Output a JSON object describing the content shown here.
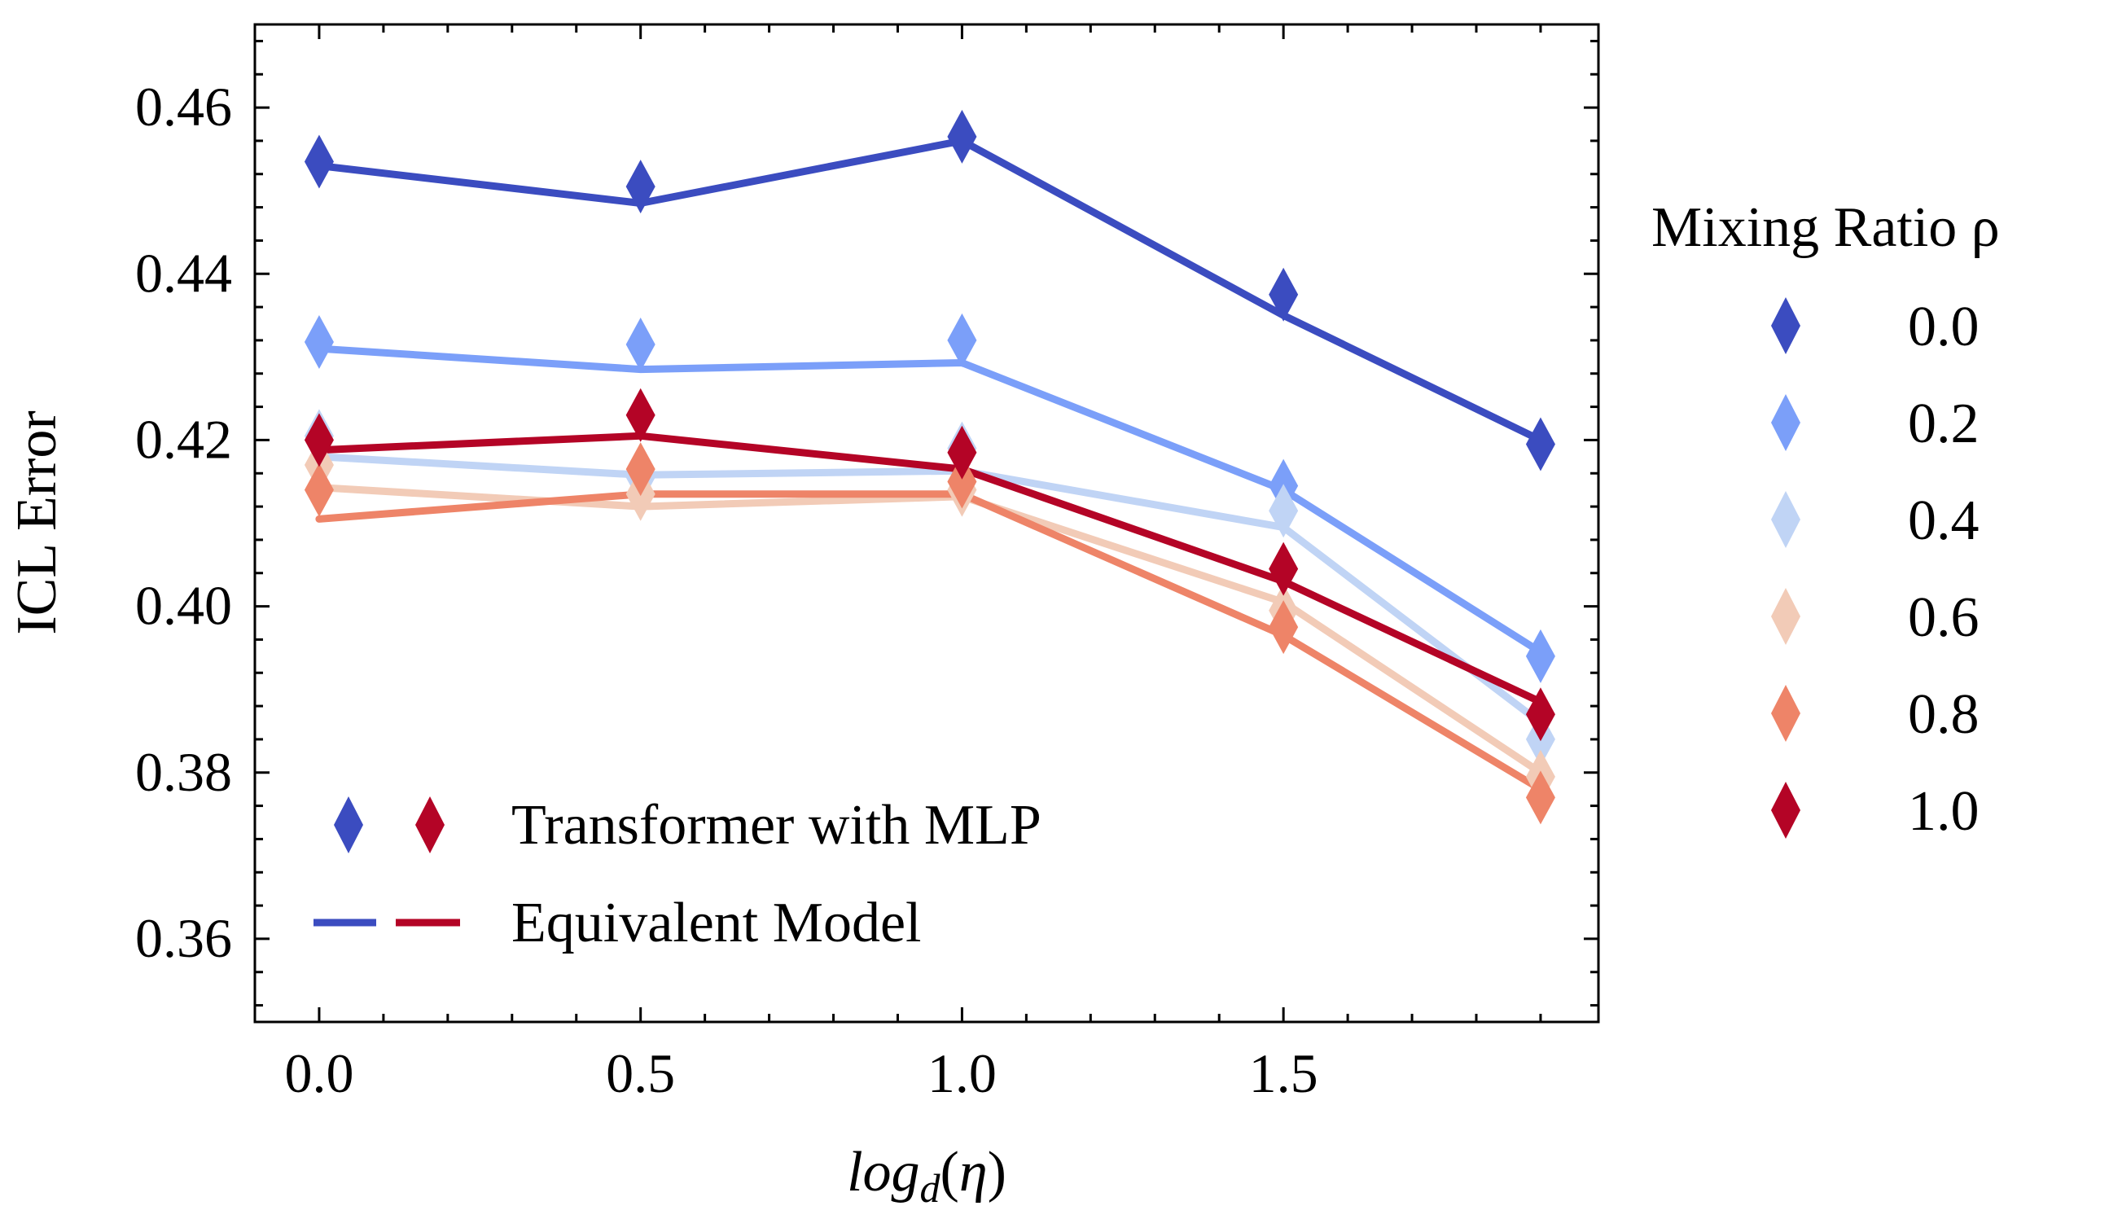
{
  "chart_data": {
    "type": "line",
    "xlabel": "log_d(η)",
    "ylabel": "ICL Error",
    "xlim": [
      -0.1,
      1.99
    ],
    "ylim": [
      0.35,
      0.47
    ],
    "x_ticks": [
      0.0,
      0.5,
      1.0,
      1.5
    ],
    "x_tick_labels": [
      "0.0",
      "0.5",
      "1.0",
      "1.5"
    ],
    "y_ticks": [
      0.36,
      0.38,
      0.4,
      0.42,
      0.44,
      0.46
    ],
    "y_tick_labels": [
      "0.36",
      "0.38",
      "0.40",
      "0.42",
      "0.44",
      "0.46"
    ],
    "x": [
      0.0,
      0.5,
      1.0,
      1.5,
      1.9
    ],
    "legend_title": "Mixing Ratio ρ",
    "legend_placement": "right-outside",
    "style_legend": {
      "placement": "lower-left",
      "markers_label": "Transformer with MLP",
      "lines_label": "Equivalent Model"
    },
    "series": [
      {
        "name": "0.0",
        "color": "#3b4cc0",
        "markers": [
          0.4535,
          0.4505,
          0.4565,
          0.4375,
          0.4195
        ],
        "line": [
          0.453,
          0.4485,
          0.456,
          0.435,
          0.42
        ]
      },
      {
        "name": "0.2",
        "color": "#7b9ff9",
        "markers": [
          0.4318,
          0.4315,
          0.432,
          0.4145,
          0.394
        ],
        "line": [
          0.431,
          0.4285,
          0.4293,
          0.414,
          0.3945
        ]
      },
      {
        "name": "0.4",
        "color": "#c0d4f5",
        "markers": [
          0.4205,
          0.4155,
          0.419,
          0.4115,
          0.384
        ],
        "line": [
          0.418,
          0.4158,
          0.4163,
          0.4095,
          0.386
        ]
      },
      {
        "name": "0.6",
        "color": "#f2cbb7",
        "markers": [
          0.417,
          0.4135,
          0.414,
          0.3995,
          0.3795
        ],
        "line": [
          0.4143,
          0.412,
          0.4132,
          0.4005,
          0.38
        ]
      },
      {
        "name": "0.8",
        "color": "#ee8468",
        "markers": [
          0.414,
          0.4165,
          0.415,
          0.3975,
          0.377
        ],
        "line": [
          0.4105,
          0.4135,
          0.4135,
          0.3965,
          0.378
        ]
      },
      {
        "name": "1.0",
        "color": "#b40426",
        "markers": [
          0.42,
          0.423,
          0.4185,
          0.4045,
          0.387
        ],
        "line": [
          0.4188,
          0.4205,
          0.4165,
          0.403,
          0.3885
        ]
      }
    ]
  }
}
